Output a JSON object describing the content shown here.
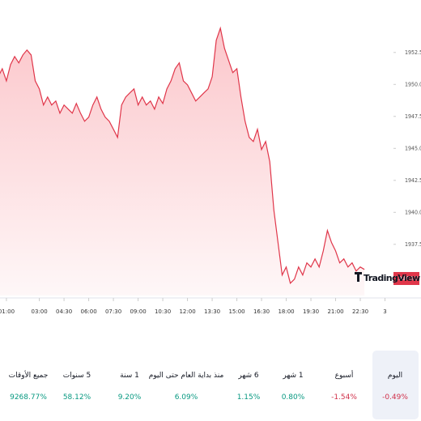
{
  "chart_data": {
    "type": "line",
    "watermark": "TradingView",
    "color": "#e0364a",
    "x": [
      0.5,
      0.75,
      1.0,
      1.25,
      1.5,
      1.75,
      2.0,
      2.25,
      2.5,
      2.75,
      3.0,
      3.25,
      3.5,
      3.75,
      4.0,
      4.25,
      4.5,
      4.75,
      5.0,
      5.25,
      5.5,
      5.75,
      6.0,
      6.25,
      6.5,
      6.75,
      7.0,
      7.25,
      7.5,
      7.75,
      8.0,
      8.25,
      8.5,
      8.75,
      9.0,
      9.25,
      9.5,
      9.75,
      10.0,
      10.25,
      10.5,
      10.75,
      11.0,
      11.25,
      11.5,
      11.75,
      12.0,
      12.25,
      12.5,
      12.75,
      13.0,
      13.25,
      13.5,
      13.75,
      14.0,
      14.25,
      14.5,
      14.75,
      15.0,
      15.25,
      15.5,
      15.75,
      16.0,
      16.25,
      16.5,
      16.75,
      17.0,
      17.25,
      17.5,
      17.75,
      18.0,
      18.25,
      18.5,
      18.75,
      19.0,
      19.25,
      19.5,
      19.75,
      20.0,
      20.25,
      20.5,
      20.75,
      21.0,
      21.25,
      21.5,
      21.75,
      22.0,
      22.25,
      22.5,
      22.75
    ],
    "values": [
      1950.6,
      1951.23,
      1950.28,
      1951.55,
      1952.18,
      1951.68,
      1952.31,
      1952.69,
      1952.31,
      1950.28,
      1949.65,
      1948.39,
      1949.02,
      1948.39,
      1948.7,
      1947.75,
      1948.39,
      1948.07,
      1947.75,
      1948.51,
      1947.75,
      1947.12,
      1947.44,
      1948.39,
      1949.02,
      1948.07,
      1947.44,
      1947.12,
      1946.49,
      1945.86,
      1948.39,
      1949.02,
      1949.34,
      1949.65,
      1948.39,
      1949.02,
      1948.39,
      1948.7,
      1948.07,
      1949.02,
      1948.51,
      1949.65,
      1950.28,
      1951.23,
      1951.68,
      1950.28,
      1949.97,
      1949.34,
      1948.7,
      1949.02,
      1949.34,
      1949.65,
      1950.6,
      1953.45,
      1954.4,
      1952.82,
      1951.87,
      1950.92,
      1951.23,
      1949.02,
      1947.12,
      1945.86,
      1945.54,
      1946.49,
      1944.91,
      1945.54,
      1943.96,
      1940.16,
      1937.63,
      1935.1,
      1935.73,
      1934.46,
      1934.78,
      1935.73,
      1935.1,
      1936.05,
      1935.73,
      1936.36,
      1935.73,
      1936.99,
      1938.58,
      1937.63,
      1936.99,
      1936.05,
      1936.36,
      1935.73,
      1936.05,
      1935.41,
      1935.73,
      1935.54
    ],
    "last_price": 1934.83,
    "xlim": [
      0.61,
      24.22
    ],
    "xticks": [
      {
        "value": 1,
        "label": "01:00"
      },
      {
        "value": 3,
        "label": "03:00"
      },
      {
        "value": 4.5,
        "label": "04:30"
      },
      {
        "value": 6,
        "label": "06:00"
      },
      {
        "value": 7.5,
        "label": "07:30"
      },
      {
        "value": 9,
        "label": "09:00"
      },
      {
        "value": 10.5,
        "label": "10:30"
      },
      {
        "value": 12,
        "label": "12:00"
      },
      {
        "value": 13.5,
        "label": "13:30"
      },
      {
        "value": 15,
        "label": "15:00"
      },
      {
        "value": 16.5,
        "label": "16:30"
      },
      {
        "value": 18,
        "label": "18:00"
      },
      {
        "value": 19.5,
        "label": "19:30"
      },
      {
        "value": 21,
        "label": "21:00"
      },
      {
        "value": 22.5,
        "label": "22:30"
      },
      {
        "value": 24,
        "label": "3"
      }
    ],
    "ylim": [
      1933.5,
      1956.6
    ],
    "yticks": [
      {
        "value": 1937.5,
        "label": "1937.50"
      },
      {
        "value": 1940,
        "label": "1940.00"
      },
      {
        "value": 1942.5,
        "label": "1942.50"
      },
      {
        "value": 1945,
        "label": "1945.00"
      },
      {
        "value": 1947.5,
        "label": "1947.50"
      },
      {
        "value": 1950,
        "label": "1950.00"
      },
      {
        "value": 1952.5,
        "label": "1952.50"
      }
    ]
  },
  "periods": [
    {
      "name": "اليوم",
      "change": "-0.49%",
      "color": "#d0304a"
    },
    {
      "name": "أسبوع",
      "change": "-1.54%",
      "color": "#d0304a"
    },
    {
      "name": "1 شهر",
      "change": "0.80%",
      "color": "#089981"
    },
    {
      "name": "6 شهر",
      "change": "1.15%",
      "color": "#089981"
    },
    {
      "name": "منذ بداية العام حتى اليوم",
      "change": "6.09%",
      "color": "#089981"
    },
    {
      "name": "1 سنة",
      "change": "9.20%",
      "color": "#089981"
    },
    {
      "name": "5 سنوات",
      "change": "58.12%",
      "color": "#089981"
    },
    {
      "name": "جميع الأوقات",
      "change": "9268.77%",
      "color": "#089981"
    }
  ]
}
